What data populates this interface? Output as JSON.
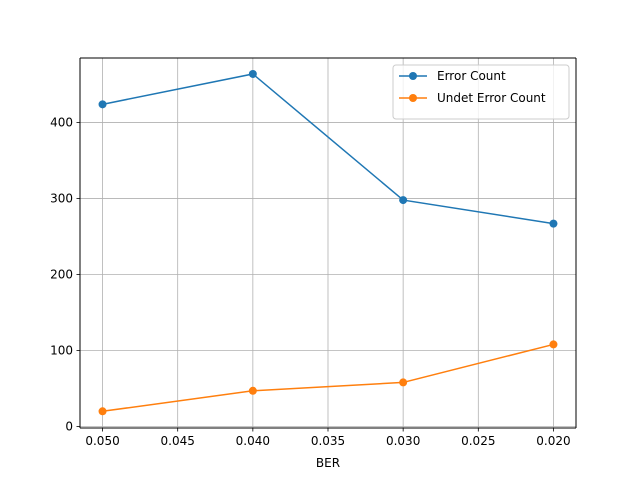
{
  "chart_data": {
    "type": "line",
    "xlabel": "BER",
    "ylabel": "",
    "title": "",
    "x": [
      0.05,
      0.04,
      0.03,
      0.02
    ],
    "xlim": [
      0.0515,
      0.0185
    ],
    "ylim": [
      -2,
      485
    ],
    "xticks": [
      0.05,
      0.045,
      0.04,
      0.035,
      0.03,
      0.025,
      0.02
    ],
    "xtick_labels": [
      "0.050",
      "0.045",
      "0.040",
      "0.035",
      "0.030",
      "0.025",
      "0.020"
    ],
    "yticks": [
      0,
      100,
      200,
      300,
      400
    ],
    "ytick_labels": [
      "0",
      "100",
      "200",
      "300",
      "400"
    ],
    "grid": true,
    "legend_position": "top-right",
    "series": [
      {
        "name": "Error Count",
        "color": "#1f77b4",
        "marker": "circle",
        "values": [
          424,
          464,
          298,
          267
        ]
      },
      {
        "name": "Undet Error Count",
        "color": "#ff7f0e",
        "marker": "circle",
        "values": [
          20,
          47,
          58,
          108
        ]
      }
    ]
  }
}
